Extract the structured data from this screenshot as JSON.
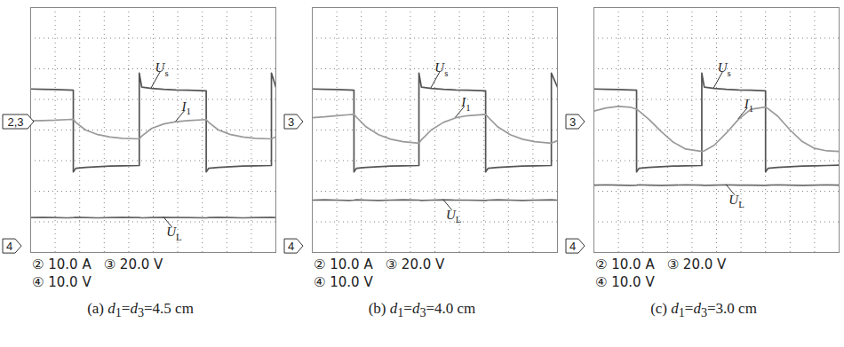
{
  "chart_data": [
    {
      "type": "line",
      "title": "(a) d1=d3=4.5 cm",
      "xlim": [
        0,
        10
      ],
      "ylim": [
        0,
        8
      ],
      "xticks": [
        0,
        1,
        2,
        3,
        4,
        5,
        6,
        7,
        8,
        9,
        10
      ],
      "yticks": [
        0,
        1,
        2,
        3,
        4,
        5,
        6,
        7,
        8
      ],
      "grid": true,
      "tick_labels": false,
      "x": [
        0,
        0.5,
        1.0,
        1.5,
        1.74,
        1.74,
        1.84,
        2.24,
        2.74,
        3.24,
        3.74,
        4.43,
        4.43,
        4.53,
        4.93,
        5.43,
        5.93,
        6.43,
        7.16,
        7.16,
        7.26,
        7.66,
        8.16,
        8.66,
        9.16,
        9.82,
        9.82,
        10
      ],
      "series": [
        {
          "name": "Us",
          "color": "#555555",
          "values": [
            5.34,
            5.33,
            5.32,
            5.31,
            5.3,
            2.63,
            2.75,
            2.78,
            2.8,
            2.82,
            2.83,
            2.84,
            5.86,
            5.4,
            5.36,
            5.33,
            5.31,
            5.3,
            5.28,
            2.63,
            2.75,
            2.78,
            2.8,
            2.82,
            2.83,
            2.84,
            5.86,
            5.4
          ]
        },
        {
          "name": "I1",
          "color": "#9a9a9a",
          "values": [
            4.3,
            4.31,
            4.32,
            4.34,
            4.35,
            4.35,
            4.25,
            4.0,
            3.85,
            3.77,
            3.73,
            3.71,
            3.71,
            3.8,
            4.05,
            4.2,
            4.27,
            4.31,
            4.34,
            4.34,
            4.25,
            4.0,
            3.85,
            3.77,
            3.73,
            3.71,
            3.71,
            3.78
          ]
        },
        {
          "name": "UL",
          "color": "#6a6a6a",
          "values": [
            1.14,
            1.15,
            1.14,
            1.13,
            1.14,
            1.14,
            1.15,
            1.14,
            1.13,
            1.14,
            1.15,
            1.14,
            1.14,
            1.13,
            1.14,
            1.15,
            1.14,
            1.14,
            1.13,
            1.13,
            1.14,
            1.15,
            1.14,
            1.13,
            1.14,
            1.15,
            1.15,
            1.14
          ]
        }
      ],
      "channel_markers": [
        {
          "label": "2,3",
          "value": 4.26
        },
        {
          "label": "4",
          "value": 0.2
        }
      ],
      "annotations": [
        "② 10.0 A",
        "③ 20.0 V",
        "④ 10.0 V"
      ]
    },
    {
      "type": "line",
      "title": "(b) d1=d3=4.0 cm",
      "xlim": [
        0,
        10
      ],
      "ylim": [
        0,
        8
      ],
      "xticks": [
        0,
        1,
        2,
        3,
        4,
        5,
        6,
        7,
        8,
        9,
        10
      ],
      "yticks": [
        0,
        1,
        2,
        3,
        4,
        5,
        6,
        7,
        8
      ],
      "grid": true,
      "tick_labels": false,
      "x": [
        0,
        0.5,
        1.0,
        1.5,
        1.7,
        1.7,
        1.8,
        2.2,
        2.7,
        3.2,
        3.7,
        4.35,
        4.35,
        4.45,
        4.85,
        5.35,
        5.85,
        6.35,
        7.07,
        7.07,
        7.17,
        7.57,
        8.07,
        8.57,
        9.07,
        9.75,
        9.75,
        10
      ],
      "series": [
        {
          "name": "Us",
          "color": "#555555",
          "values": [
            5.34,
            5.33,
            5.32,
            5.31,
            5.3,
            2.63,
            2.75,
            2.78,
            2.8,
            2.82,
            2.83,
            2.84,
            5.86,
            5.4,
            5.36,
            5.33,
            5.31,
            5.3,
            5.28,
            2.63,
            2.75,
            2.78,
            2.8,
            2.82,
            2.83,
            2.84,
            5.86,
            5.4
          ]
        },
        {
          "name": "I1",
          "color": "#9a9a9a",
          "values": [
            4.4,
            4.43,
            4.47,
            4.5,
            4.51,
            4.51,
            4.42,
            4.1,
            3.85,
            3.7,
            3.62,
            3.57,
            3.57,
            3.68,
            4.0,
            4.25,
            4.4,
            4.47,
            4.51,
            4.51,
            4.42,
            4.1,
            3.85,
            3.7,
            3.62,
            3.57,
            3.57,
            3.65
          ]
        },
        {
          "name": "UL",
          "color": "#6a6a6a",
          "values": [
            1.71,
            1.72,
            1.71,
            1.7,
            1.71,
            1.71,
            1.72,
            1.71,
            1.7,
            1.71,
            1.72,
            1.71,
            1.71,
            1.7,
            1.71,
            1.72,
            1.71,
            1.71,
            1.7,
            1.7,
            1.71,
            1.72,
            1.71,
            1.7,
            1.71,
            1.72,
            1.72,
            1.71
          ]
        }
      ],
      "channel_markers": [
        {
          "label": "3",
          "value": 4.26
        },
        {
          "label": "4",
          "value": 0.2
        }
      ],
      "annotations": [
        "② 10.0 A",
        "③ 20.0 V",
        "④ 10.0 V"
      ]
    },
    {
      "type": "line",
      "title": "(c) d1=d3=3.0 cm",
      "xlim": [
        0,
        10
      ],
      "ylim": [
        0,
        8
      ],
      "xticks": [
        0,
        1,
        2,
        3,
        4,
        5,
        6,
        7,
        8,
        9,
        10
      ],
      "yticks": [
        0,
        1,
        2,
        3,
        4,
        5,
        6,
        7,
        8
      ],
      "grid": true,
      "tick_labels": false,
      "x": [
        0,
        0.5,
        1.0,
        1.5,
        1.74,
        1.74,
        1.84,
        2.24,
        2.74,
        3.24,
        3.74,
        4.4,
        4.4,
        4.5,
        4.9,
        5.4,
        5.9,
        6.4,
        7.0,
        7.0,
        7.1,
        7.5,
        8.0,
        8.5,
        9.0,
        9.5,
        10
      ],
      "series": [
        {
          "name": "Us",
          "color": "#555555",
          "values": [
            5.34,
            5.33,
            5.32,
            5.31,
            5.3,
            2.63,
            2.75,
            2.78,
            2.8,
            2.82,
            2.83,
            2.84,
            5.86,
            5.4,
            5.36,
            5.33,
            5.31,
            5.3,
            5.28,
            2.63,
            2.75,
            2.78,
            2.8,
            2.82,
            2.83,
            2.84,
            2.85
          ]
        },
        {
          "name": "I1",
          "color": "#9a9a9a",
          "values": [
            4.62,
            4.72,
            4.77,
            4.74,
            4.68,
            4.68,
            4.62,
            4.35,
            3.95,
            3.6,
            3.38,
            3.3,
            3.3,
            3.32,
            3.5,
            3.9,
            4.35,
            4.68,
            4.75,
            4.75,
            4.7,
            4.45,
            4.0,
            3.62,
            3.4,
            3.32,
            3.3
          ]
        },
        {
          "name": "UL",
          "color": "#6a6a6a",
          "values": [
            2.2,
            2.21,
            2.2,
            2.19,
            2.2,
            2.2,
            2.21,
            2.2,
            2.19,
            2.2,
            2.21,
            2.2,
            2.2,
            2.19,
            2.2,
            2.21,
            2.2,
            2.2,
            2.19,
            2.19,
            2.2,
            2.21,
            2.2,
            2.19,
            2.2,
            2.21,
            2.2
          ]
        }
      ],
      "channel_markers": [
        {
          "label": "3",
          "value": 4.26
        },
        {
          "label": "4",
          "value": 0.2
        }
      ],
      "annotations": [
        "② 10.0 A",
        "③ 20.0 V",
        "④ 10.0 V"
      ]
    }
  ]
}
